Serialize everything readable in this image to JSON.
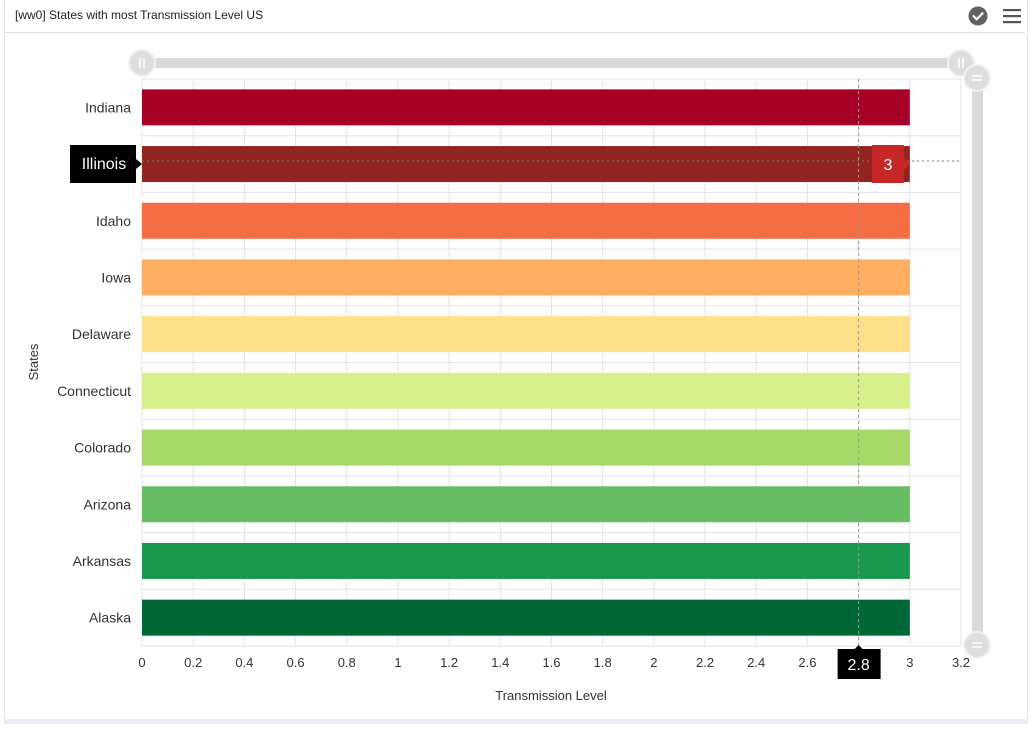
{
  "panel": {
    "title": "[ww0] States with most Transmission Level US"
  },
  "icons": {
    "status": "check-circle-icon",
    "menu": "hamburger-menu-icon"
  },
  "chart_data": {
    "type": "bar",
    "orientation": "horizontal",
    "title": "",
    "xlabel": "Transmission Level",
    "ylabel": "States",
    "xlim": [
      0,
      3.2
    ],
    "xticks": [
      "0",
      "0.2",
      "0.4",
      "0.6",
      "0.8",
      "1",
      "1.2",
      "1.4",
      "1.6",
      "1.8",
      "2",
      "2.2",
      "2.4",
      "2.6",
      "2.8",
      "3",
      "3.2"
    ],
    "categories": [
      "Indiana",
      "Illinois",
      "Idaho",
      "Iowa",
      "Delaware",
      "Connecticut",
      "Colorado",
      "Arizona",
      "Arkansas",
      "Alaska"
    ],
    "values": [
      3,
      3,
      3,
      3,
      3,
      3,
      3,
      3,
      3,
      3
    ],
    "colors": [
      "#a50026",
      "#93231e",
      "#f46d43",
      "#fdae61",
      "#fee08b",
      "#d9ef8b",
      "#a6d96a",
      "#66bd63",
      "#1a9850",
      "#006837"
    ],
    "grid": true,
    "tooltip": {
      "category": "Illinois",
      "value": "3",
      "color": "#c62828"
    },
    "crosshair": {
      "x_value": "2.8"
    }
  }
}
